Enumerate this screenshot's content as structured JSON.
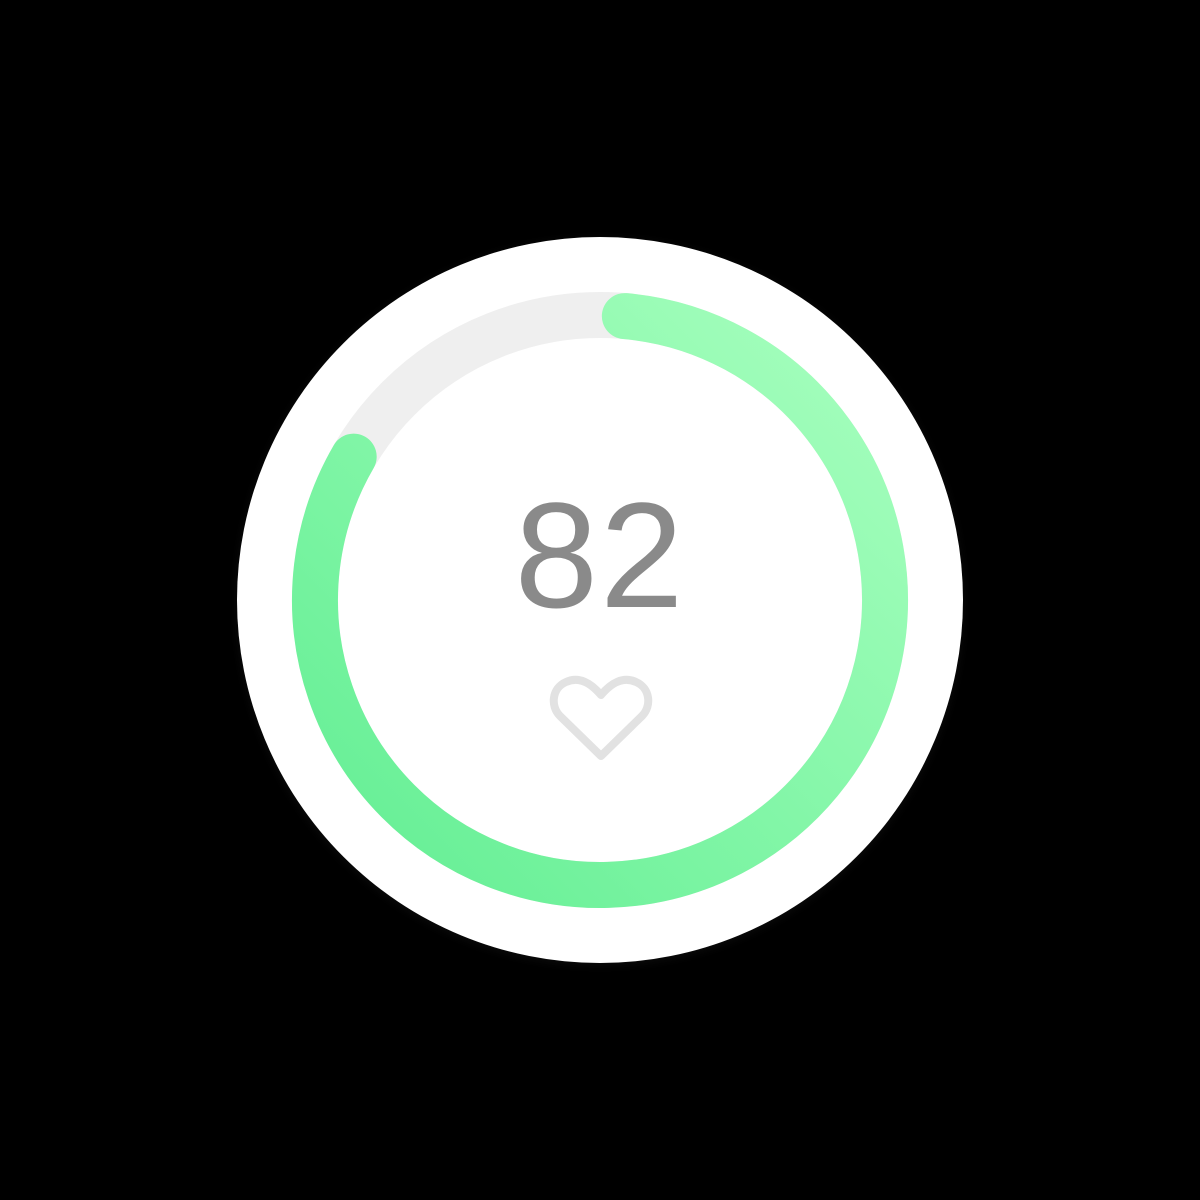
{
  "gauge": {
    "value_text": "82",
    "progress_fraction": 0.82,
    "icon": "heart-outline-icon",
    "colors": {
      "background": "#000000",
      "card": "#ffffff",
      "track": "#efefef",
      "progress_start": "#a8ffbf",
      "progress_end": "#62ee93",
      "value_text": "#8a8a8a",
      "icon": "#e2e2e2"
    }
  }
}
